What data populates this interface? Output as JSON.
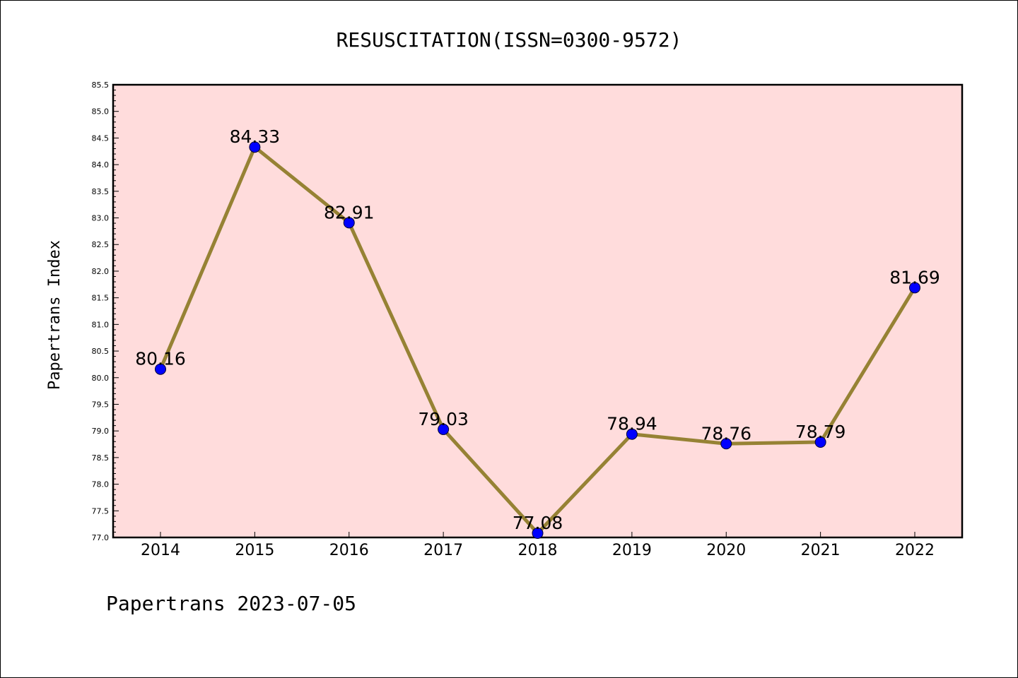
{
  "title": "RESUSCITATION(ISSN=0300-9572)",
  "footer": "Papertrans 2023-07-05",
  "colors": {
    "plot_background": "#ffdcdc",
    "line": "#968234",
    "marker": "#0000ff"
  },
  "chart_data": {
    "type": "line",
    "title": "RESUSCITATION(ISSN=0300-9572)",
    "xlabel": "",
    "ylabel": "Papertrans Index",
    "categories": [
      "2014",
      "2015",
      "2016",
      "2017",
      "2018",
      "2019",
      "2020",
      "2021",
      "2022"
    ],
    "values": [
      80.16,
      84.33,
      82.91,
      79.03,
      77.08,
      78.94,
      78.76,
      78.79,
      81.69
    ],
    "data_labels": [
      "80.16",
      "84.33",
      "82.91",
      "79.03",
      "77.08",
      "78.94",
      "78.76",
      "78.79",
      "81.69"
    ],
    "ylim": [
      77.0,
      85.5
    ],
    "yticks": [
      "77.0",
      "77.5",
      "78.0",
      "78.5",
      "79.0",
      "79.5",
      "80.0",
      "80.5",
      "81.0",
      "81.5",
      "82.0",
      "82.5",
      "83.0",
      "83.5",
      "84.0",
      "84.5",
      "85.0",
      "85.5"
    ],
    "grid": false,
    "legend": "none"
  }
}
